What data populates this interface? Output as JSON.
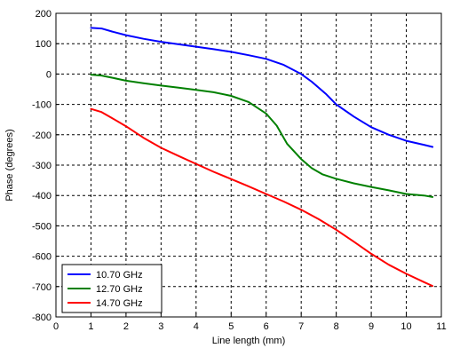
{
  "chart_data": {
    "type": "line",
    "title": "",
    "xlabel": "Line length (mm)",
    "ylabel": "Phase (degrees)",
    "xlim": [
      0,
      11
    ],
    "ylim": [
      -800,
      200
    ],
    "xticks": [
      0,
      1,
      2,
      3,
      4,
      5,
      6,
      7,
      8,
      9,
      10,
      11
    ],
    "yticks": [
      200,
      100,
      0,
      -100,
      -200,
      -300,
      -400,
      -500,
      -600,
      -700,
      -800
    ],
    "grid": true,
    "legend_position": "bottom-left",
    "series": [
      {
        "name": "10.70 GHz",
        "color": "#0000ff",
        "x": [
          1.0,
          1.3,
          1.6,
          2.0,
          2.5,
          3.0,
          3.5,
          4.0,
          4.5,
          5.0,
          5.5,
          6.0,
          6.5,
          7.0,
          7.3,
          7.7,
          8.0,
          8.5,
          9.0,
          9.5,
          10.0,
          10.5,
          10.75
        ],
        "y": [
          152,
          150,
          140,
          128,
          116,
          106,
          98,
          90,
          82,
          73,
          62,
          50,
          30,
          0,
          -25,
          -65,
          -100,
          -140,
          -175,
          -200,
          -220,
          -233,
          -240
        ]
      },
      {
        "name": "12.70 GHz",
        "color": "#008000",
        "x": [
          1.0,
          1.3,
          1.6,
          2.0,
          2.5,
          3.0,
          3.5,
          4.0,
          4.5,
          5.0,
          5.5,
          6.0,
          6.3,
          6.6,
          7.0,
          7.3,
          7.6,
          8.0,
          8.5,
          9.0,
          9.5,
          10.0,
          10.5,
          10.75
        ],
        "y": [
          -2,
          -5,
          -12,
          -22,
          -30,
          -38,
          -45,
          -52,
          -60,
          -72,
          -92,
          -130,
          -170,
          -230,
          -280,
          -310,
          -330,
          -345,
          -360,
          -372,
          -383,
          -395,
          -400,
          -405
        ]
      },
      {
        "name": "14.70 GHz",
        "color": "#ff0000",
        "x": [
          1.0,
          1.3,
          1.6,
          2.0,
          2.5,
          3.0,
          3.5,
          4.0,
          4.5,
          5.0,
          5.5,
          6.0,
          6.5,
          7.0,
          7.5,
          8.0,
          8.5,
          9.0,
          9.5,
          10.0,
          10.5,
          10.75
        ],
        "y": [
          -115,
          -125,
          -145,
          -172,
          -210,
          -243,
          -270,
          -296,
          -322,
          -346,
          -370,
          -395,
          -420,
          -447,
          -478,
          -513,
          -552,
          -592,
          -628,
          -658,
          -685,
          -698
        ]
      }
    ]
  }
}
